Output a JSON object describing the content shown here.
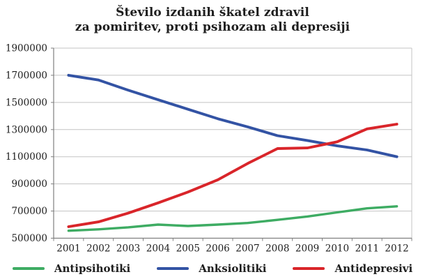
{
  "title": {
    "line1": "Število izdanih škatel zdravil",
    "line2": "za pomiritev, proti psihozam ali depresiji"
  },
  "chart_data": {
    "type": "line",
    "x": [
      2001,
      2002,
      2003,
      2004,
      2005,
      2006,
      2007,
      2008,
      2009,
      2010,
      2011,
      2012
    ],
    "series": [
      {
        "name": "Antipsihotiki",
        "color": "#3eac63",
        "values": [
          555000,
          565000,
          580000,
          600000,
          590000,
          600000,
          612000,
          635000,
          660000,
          690000,
          720000,
          735000
        ]
      },
      {
        "name": "Anksiolitiki",
        "color": "#3353a4",
        "values": [
          1700000,
          1665000,
          1590000,
          1520000,
          1450000,
          1380000,
          1320000,
          1255000,
          1220000,
          1180000,
          1150000,
          1100000
        ]
      },
      {
        "name": "Antidepresivi",
        "color": "#d9252a",
        "values": [
          585000,
          620000,
          685000,
          760000,
          840000,
          930000,
          1050000,
          1160000,
          1165000,
          1210000,
          1305000,
          1340000
        ]
      }
    ],
    "ylim": [
      500000,
      1900000
    ],
    "yticks": [
      500000,
      700000,
      900000,
      1100000,
      1300000,
      1500000,
      1700000,
      1900000
    ],
    "ytick_labels": [
      "500000",
      "700000",
      "900000",
      "1100000",
      "1300000",
      "1500000",
      "1700000",
      "1900000"
    ],
    "xtick_labels": [
      "2001",
      "2002",
      "2003",
      "2004",
      "2005",
      "2006",
      "2007",
      "2008",
      "2009",
      "2010",
      "2011",
      "2012"
    ],
    "grid": true,
    "legend_position": "bottom",
    "colors": {
      "gridline": "#c3c3c3",
      "axis": "#7f7f7f",
      "tick_text": "#1e1e1e"
    }
  }
}
